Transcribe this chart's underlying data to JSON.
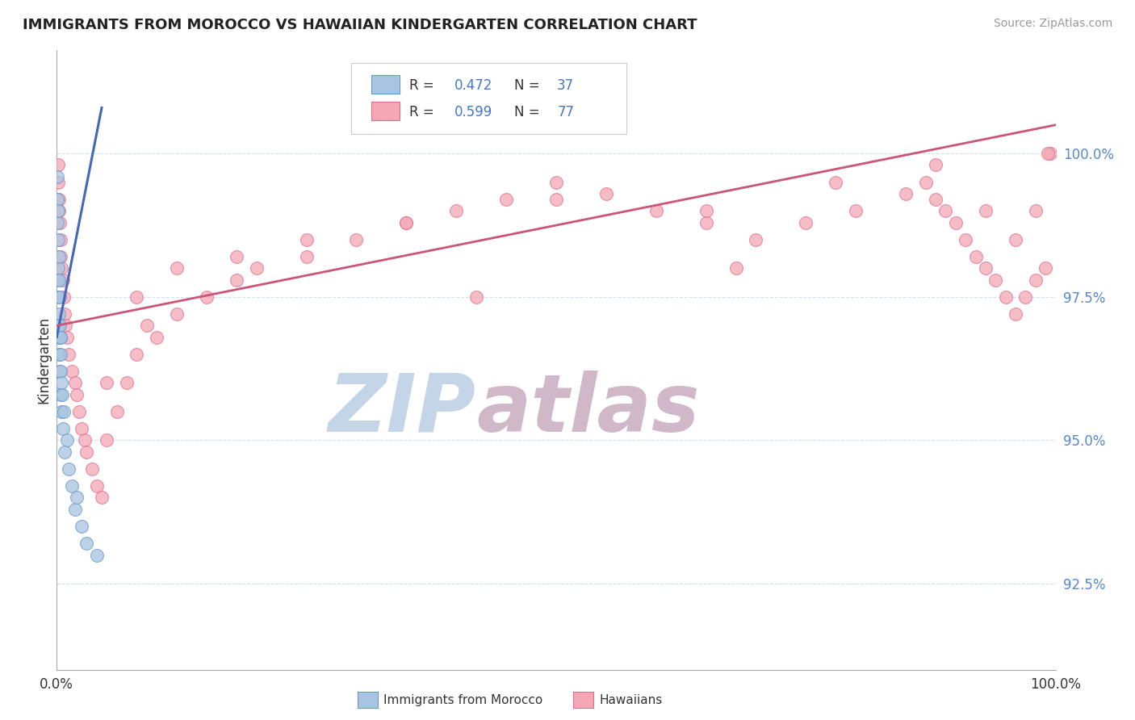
{
  "title": "IMMIGRANTS FROM MOROCCO VS HAWAIIAN KINDERGARTEN CORRELATION CHART",
  "source": "Source: ZipAtlas.com",
  "ylabel": "Kindergarten",
  "ytick_labels": [
    "92.5%",
    "95.0%",
    "97.5%",
    "100.0%"
  ],
  "ytick_values": [
    92.5,
    95.0,
    97.5,
    100.0
  ],
  "legend_blue_r": "0.472",
  "legend_blue_n": "37",
  "legend_pink_r": "0.599",
  "legend_pink_n": "77",
  "blue_color": "#A8C4E0",
  "pink_color": "#F4A7B5",
  "blue_edge_color": "#6699CC",
  "pink_edge_color": "#E07090",
  "blue_line_color": "#4466BB",
  "pink_line_color": "#CC5577",
  "watermark_zip_color": "#C5D5E8",
  "watermark_atlas_color": "#D0B8C8",
  "xmin": 0.0,
  "xmax": 100.0,
  "ymin": 91.0,
  "ymax": 101.8,
  "blue_scatter_x": [
    0.05,
    0.05,
    0.08,
    0.1,
    0.1,
    0.12,
    0.15,
    0.15,
    0.18,
    0.2,
    0.2,
    0.22,
    0.25,
    0.25,
    0.28,
    0.3,
    0.3,
    0.32,
    0.35,
    0.35,
    0.38,
    0.4,
    0.42,
    0.45,
    0.5,
    0.55,
    0.6,
    0.7,
    0.8,
    1.0,
    1.2,
    1.5,
    1.8,
    2.0,
    2.5,
    3.0,
    4.0
  ],
  "blue_scatter_y": [
    99.6,
    98.8,
    99.2,
    98.5,
    97.8,
    99.0,
    98.0,
    97.5,
    98.2,
    97.2,
    96.8,
    97.8,
    97.0,
    96.5,
    97.5,
    96.8,
    96.2,
    97.0,
    96.5,
    95.8,
    96.8,
    96.2,
    96.8,
    96.0,
    95.5,
    95.8,
    95.2,
    95.5,
    94.8,
    95.0,
    94.5,
    94.2,
    93.8,
    94.0,
    93.5,
    93.2,
    93.0
  ],
  "pink_scatter_x": [
    0.1,
    0.15,
    0.2,
    0.25,
    0.3,
    0.35,
    0.4,
    0.5,
    0.6,
    0.7,
    0.8,
    0.9,
    1.0,
    1.2,
    1.5,
    1.8,
    2.0,
    2.2,
    2.5,
    2.8,
    3.0,
    3.5,
    4.0,
    4.5,
    5.0,
    6.0,
    7.0,
    8.0,
    9.0,
    10.0,
    12.0,
    15.0,
    18.0,
    20.0,
    25.0,
    30.0,
    35.0,
    40.0,
    45.0,
    50.0,
    55.0,
    60.0,
    65.0,
    70.0,
    75.0,
    80.0,
    85.0,
    87.0,
    88.0,
    89.0,
    90.0,
    91.0,
    92.0,
    93.0,
    94.0,
    95.0,
    96.0,
    97.0,
    98.0,
    99.0,
    99.5,
    5.0,
    8.0,
    12.0,
    18.0,
    25.0,
    35.0,
    50.0,
    65.0,
    78.0,
    88.0,
    93.0,
    96.0,
    98.0,
    99.2,
    42.0,
    68.0
  ],
  "pink_scatter_y": [
    99.8,
    99.5,
    99.2,
    99.0,
    98.8,
    98.5,
    98.2,
    98.0,
    97.8,
    97.5,
    97.2,
    97.0,
    96.8,
    96.5,
    96.2,
    96.0,
    95.8,
    95.5,
    95.2,
    95.0,
    94.8,
    94.5,
    94.2,
    94.0,
    95.0,
    95.5,
    96.0,
    96.5,
    97.0,
    96.8,
    97.2,
    97.5,
    97.8,
    98.0,
    98.2,
    98.5,
    98.8,
    99.0,
    99.2,
    99.5,
    99.3,
    99.0,
    98.8,
    98.5,
    98.8,
    99.0,
    99.3,
    99.5,
    99.2,
    99.0,
    98.8,
    98.5,
    98.2,
    98.0,
    97.8,
    97.5,
    97.2,
    97.5,
    97.8,
    98.0,
    100.0,
    96.0,
    97.5,
    98.0,
    98.2,
    98.5,
    98.8,
    99.2,
    99.0,
    99.5,
    99.8,
    99.0,
    98.5,
    99.0,
    100.0,
    97.5,
    98.0
  ],
  "figwidth": 14.06,
  "figheight": 8.92
}
